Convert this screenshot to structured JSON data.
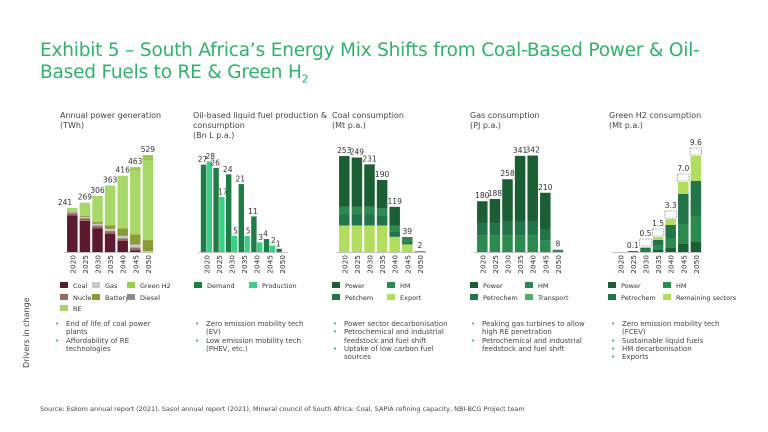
{
  "title": {
    "main": "Exhibit 5 – South Africa’s Energy Mix Shifts from Coal-Based Power & Oil-Based Fuels to RE & Green H",
    "sub": "2"
  },
  "colors": {
    "coal": "#5c1a2e",
    "gas": "#c9c9c9",
    "green_h2": "#9acd4e",
    "nuclear": "#a0685e",
    "battery": "#8c9a3a",
    "diesel": "#8c8c8c",
    "re": "#a8d86a",
    "demand": "#1e7d45",
    "production": "#3ccf86",
    "power": "#1b5e33",
    "hm": "#2d8a4e",
    "petchem": "#24744a",
    "export": "#b3dd5e",
    "transport": "#4fae6a",
    "remaining": "#b3dd5e"
  },
  "drivers_label": "Drivers in change",
  "source": "Source: Eskom annual report (2021), Sasol annual report (2021), Mineral council of South Africa: Coal, SAPIA refining capacity, NBI-BCG Project team",
  "chart_data": [
    {
      "type": "bar",
      "stacked": true,
      "title": "Annual power generation",
      "unit": "(TWh)",
      "categories": [
        "2020",
        "2025",
        "2030",
        "2035",
        "2040",
        "2045",
        "2050"
      ],
      "totals": [
        "241",
        "269",
        "306",
        "363",
        "416",
        "463",
        "529"
      ],
      "ylim": [
        0,
        600
      ],
      "series": [
        {
          "name": "Coal",
          "color_key": "coal",
          "values": [
            200,
            170,
            130,
            100,
            60,
            10,
            0
          ]
        },
        {
          "name": "Nuclear",
          "color_key": "nuclear",
          "values": [
            12,
            12,
            12,
            12,
            12,
            12,
            0
          ]
        },
        {
          "name": "Diesel",
          "color_key": "diesel",
          "values": [
            4,
            4,
            4,
            4,
            4,
            4,
            0
          ]
        },
        {
          "name": "Gas",
          "color_key": "gas",
          "values": [
            3,
            5,
            8,
            10,
            12,
            15,
            5
          ]
        },
        {
          "name": "Battery",
          "color_key": "battery",
          "values": [
            2,
            5,
            10,
            20,
            40,
            55,
            60
          ]
        },
        {
          "name": "RE",
          "color_key": "re",
          "values": [
            20,
            73,
            142,
            217,
            288,
            347,
            434
          ]
        },
        {
          "name": "Green H2",
          "color_key": "green_h2",
          "values": [
            0,
            0,
            0,
            0,
            0,
            20,
            30
          ]
        }
      ],
      "legend": [
        {
          "label": "Coal",
          "color_key": "coal"
        },
        {
          "label": "Gas",
          "color_key": "gas"
        },
        {
          "label": "Green H2",
          "color_key": "green_h2"
        },
        {
          "label": "Nuclear",
          "color_key": "nuclear"
        },
        {
          "label": "Battery",
          "color_key": "battery"
        },
        {
          "label": "Diesel",
          "color_key": "diesel"
        },
        {
          "label": "RE",
          "color_key": "re"
        }
      ],
      "drivers": [
        "End of life of coal power plants",
        "Affordability of RE technologies"
      ]
    },
    {
      "type": "grouped_bar",
      "title": "Oil-based liquid fuel production & consumption",
      "unit": "(Bn L p.a.)",
      "categories": [
        "2020",
        "2025",
        "2030",
        "2035",
        "2040",
        "2045",
        "2050"
      ],
      "ylim": [
        0,
        34
      ],
      "series": [
        {
          "name": "Demand",
          "color_key": "demand",
          "values": [
            27,
            26,
            24,
            21,
            11,
            4,
            1
          ],
          "labels": [
            "27",
            "26",
            "24",
            "21",
            "11",
            "4",
            "1"
          ]
        },
        {
          "name": "Production",
          "color_key": "production",
          "values": [
            28,
            17,
            5,
            5,
            3,
            2,
            0
          ],
          "labels": [
            "28",
            "17",
            "5",
            "5",
            "3",
            "2",
            ""
          ]
        }
      ],
      "legend": [
        {
          "label": "Demand",
          "color_key": "demand"
        },
        {
          "label": "Production",
          "color_key": "production"
        }
      ],
      "drivers": [
        "Zero emission mobility tech (EV)",
        "Low emission mobility tech (PHEV, etc.)"
      ]
    },
    {
      "type": "bar",
      "stacked": true,
      "title": "Coal consumption",
      "unit": "(Mt p.a.)",
      "categories": [
        "2020",
        "2025",
        "2030",
        "2035",
        "2040",
        "2045",
        "2050"
      ],
      "totals": [
        "253",
        "249",
        "231",
        "190",
        "119",
        "39",
        "2"
      ],
      "ylim": [
        0,
        290
      ],
      "series": [
        {
          "name": "Export",
          "color_key": "export",
          "values": [
            70,
            70,
            70,
            70,
            40,
            20,
            0
          ]
        },
        {
          "name": "Petchem",
          "color_key": "petchem",
          "values": [
            30,
            30,
            30,
            25,
            15,
            5,
            0
          ]
        },
        {
          "name": "HM",
          "color_key": "hm",
          "values": [
            20,
            20,
            20,
            20,
            15,
            10,
            2
          ]
        },
        {
          "name": "Power",
          "color_key": "power",
          "values": [
            133,
            129,
            111,
            75,
            49,
            4,
            0
          ]
        }
      ],
      "legend": [
        {
          "label": "Power",
          "color_key": "power"
        },
        {
          "label": "HM",
          "color_key": "hm"
        },
        {
          "label": "Petchem",
          "color_key": "petchem"
        },
        {
          "label": "Export",
          "color_key": "export"
        }
      ],
      "drivers": [
        "Power sector decarbonisation",
        "Petrochemical and industrial feedstock and fuel shift",
        "Uptake of low carbon fuel sources"
      ]
    },
    {
      "type": "bar",
      "stacked": true,
      "title": "Gas consumption",
      "unit": "(PJ p.a.)",
      "categories": [
        "2020",
        "2025",
        "2030",
        "2035",
        "2040",
        "2045",
        "2050"
      ],
      "totals": [
        "180",
        "188",
        "258",
        "341",
        "342",
        "210",
        "8"
      ],
      "ylim": [
        0,
        390
      ],
      "series": [
        {
          "name": "Transport",
          "color_key": "transport",
          "values": [
            0,
            0,
            0,
            0,
            0,
            0,
            0
          ]
        },
        {
          "name": "HM",
          "color_key": "hm",
          "values": [
            60,
            60,
            60,
            60,
            60,
            40,
            5
          ]
        },
        {
          "name": "Petrochem",
          "color_key": "petchem",
          "values": [
            40,
            40,
            50,
            50,
            50,
            40,
            3
          ]
        },
        {
          "name": "Power",
          "color_key": "power",
          "values": [
            80,
            88,
            148,
            231,
            232,
            130,
            0
          ]
        }
      ],
      "legend": [
        {
          "label": "Power",
          "color_key": "power"
        },
        {
          "label": "HM",
          "color_key": "hm"
        },
        {
          "label": "Petrochem",
          "color_key": "petchem"
        },
        {
          "label": "Transport",
          "color_key": "transport"
        }
      ],
      "drivers": [
        "Peaking gas turbines to allow high RE penetration",
        "Petrochemical and industrial feedstock and fuel shift"
      ]
    },
    {
      "type": "bar",
      "stacked": true,
      "title": "Green H2 consumption",
      "unit": "(Mt p.a.)",
      "categories": [
        "2020",
        "2025",
        "2030",
        "2035",
        "2040",
        "2045",
        "2050"
      ],
      "totals": [
        "",
        "0.1",
        "0.5",
        "1.5",
        "3.3",
        "7.0",
        "9.6"
      ],
      "ylim": [
        0,
        11
      ],
      "series": [
        {
          "name": "Power",
          "color_key": "power",
          "values": [
            0,
            0,
            0.05,
            0.2,
            0.4,
            0.8,
            1.0
          ]
        },
        {
          "name": "HM",
          "color_key": "hm",
          "values": [
            0,
            0.05,
            0.15,
            0.5,
            1.0,
            2.0,
            2.6
          ]
        },
        {
          "name": "Petrochem",
          "color_key": "petchem",
          "values": [
            0,
            0.05,
            0.2,
            0.5,
            1.3,
            3.0,
            3.5
          ]
        },
        {
          "name": "Remaining sectors",
          "color_key": "remaining",
          "values": [
            0,
            0,
            0.1,
            0.3,
            0.6,
            1.2,
            2.5
          ]
        }
      ],
      "legend": [
        {
          "label": "Power",
          "color_key": "power"
        },
        {
          "label": "HM",
          "color_key": "hm"
        },
        {
          "label": "Petrochem",
          "color_key": "petchem"
        },
        {
          "label": "Remaining sectors",
          "color_key": "remaining"
        }
      ],
      "drivers": [
        "Zero emission mobility tech (FCEV)",
        "Sustainable liquid fuels",
        "HM decarbonisation",
        "Exports"
      ]
    }
  ]
}
